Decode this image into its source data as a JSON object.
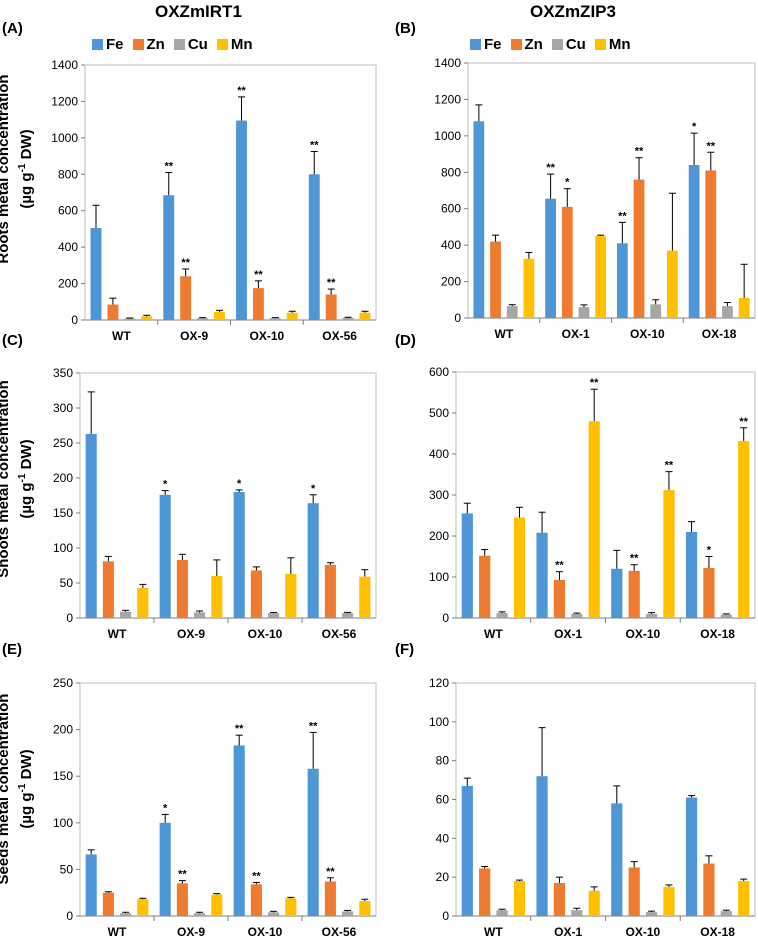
{
  "column_titles": [
    "OXZmIRT1",
    "OXZmZIP3"
  ],
  "panel_letters": [
    "(A)",
    "(B)",
    "(C)",
    "(D)",
    "(E)",
    "(F)"
  ],
  "legend": [
    "Fe",
    "Zn",
    "Cu",
    "Mn"
  ],
  "colors": {
    "Fe": "#4f96d6",
    "Zn": "#ee7b30",
    "Cu": "#a6a6a6",
    "Mn": "#ffc000"
  },
  "row_ylabels": [
    {
      "line1": "Roots metal concentration",
      "unit": "(µg g",
      "sup": "-1",
      "unit_tail": " DW)"
    },
    {
      "line1": "Shoots metal concentration",
      "unit": "(µg g",
      "sup": "-1",
      "unit_tail": " DW)"
    },
    {
      "line1": "Seeds metal concentration",
      "unit": "(µg g",
      "sup": "-1",
      "unit_tail": " DW)"
    }
  ],
  "chart_data": [
    {
      "panel": "(A)",
      "type": "bar",
      "ylim": [
        0,
        1400
      ],
      "ticks": [
        0,
        200,
        400,
        600,
        800,
        1000,
        1200,
        1400
      ],
      "categories": [
        "WT",
        "OX-9",
        "OX-10",
        "OX-56"
      ],
      "series": [
        {
          "name": "Fe",
          "values": [
            505,
            685,
            1095,
            800
          ],
          "errors": [
            125,
            125,
            130,
            125
          ],
          "sig": [
            "",
            "**",
            "**",
            "**"
          ]
        },
        {
          "name": "Zn",
          "values": [
            85,
            240,
            175,
            140
          ],
          "errors": [
            35,
            40,
            40,
            30
          ],
          "sig": [
            "",
            "**",
            "**",
            "**"
          ]
        },
        {
          "name": "Cu",
          "values": [
            8,
            10,
            10,
            12
          ],
          "errors": [
            3,
            3,
            3,
            3
          ],
          "sig": [
            "",
            "",
            "",
            ""
          ]
        },
        {
          "name": "Mn",
          "values": [
            20,
            45,
            40,
            40
          ],
          "errors": [
            6,
            8,
            8,
            8
          ],
          "sig": [
            "",
            "",
            "",
            ""
          ]
        }
      ]
    },
    {
      "panel": "(B)",
      "type": "bar",
      "ylim": [
        0,
        1400
      ],
      "ticks": [
        0,
        200,
        400,
        600,
        800,
        1000,
        1200,
        1400
      ],
      "categories": [
        "WT",
        "OX-1",
        "OX-10",
        "OX-18"
      ],
      "series": [
        {
          "name": "Fe",
          "values": [
            1080,
            655,
            410,
            840
          ],
          "errors": [
            90,
            135,
            115,
            175
          ],
          "sig": [
            "",
            "**",
            "**",
            "*"
          ]
        },
        {
          "name": "Zn",
          "values": [
            420,
            610,
            760,
            810
          ],
          "errors": [
            35,
            100,
            120,
            100
          ],
          "sig": [
            "",
            "*",
            "**",
            "**"
          ]
        },
        {
          "name": "Cu",
          "values": [
            65,
            60,
            75,
            65
          ],
          "errors": [
            8,
            12,
            25,
            20
          ],
          "sig": [
            "",
            "",
            "",
            ""
          ]
        },
        {
          "name": "Mn",
          "values": [
            325,
            450,
            370,
            110
          ],
          "errors": [
            35,
            5,
            315,
            185
          ],
          "sig": [
            "",
            "",
            "",
            ""
          ]
        }
      ]
    },
    {
      "panel": "(C)",
      "type": "bar",
      "ylim": [
        0,
        350
      ],
      "ticks": [
        0,
        50,
        100,
        150,
        200,
        250,
        300,
        350
      ],
      "categories": [
        "WT",
        "OX-9",
        "OX-10",
        "OX-56"
      ],
      "series": [
        {
          "name": "Fe",
          "values": [
            263,
            176,
            180,
            164
          ],
          "errors": [
            60,
            6,
            3,
            12
          ],
          "sig": [
            "",
            "*",
            "*",
            "*"
          ]
        },
        {
          "name": "Zn",
          "values": [
            81,
            83,
            68,
            76
          ],
          "errors": [
            7,
            8,
            5,
            3
          ],
          "sig": [
            "",
            "",
            "",
            ""
          ]
        },
        {
          "name": "Cu",
          "values": [
            9,
            8,
            7,
            7
          ],
          "errors": [
            2,
            2,
            1,
            1
          ],
          "sig": [
            "",
            "",
            "",
            ""
          ]
        },
        {
          "name": "Mn",
          "values": [
            43,
            60,
            63,
            59
          ],
          "errors": [
            5,
            23,
            23,
            10
          ],
          "sig": [
            "",
            "",
            "",
            ""
          ]
        }
      ]
    },
    {
      "panel": "(D)",
      "type": "bar",
      "ylim": [
        0,
        600
      ],
      "ticks": [
        0,
        100,
        200,
        300,
        400,
        500,
        600
      ],
      "categories": [
        "WT",
        "OX-1",
        "OX-10",
        "OX-18"
      ],
      "series": [
        {
          "name": "Fe",
          "values": [
            255,
            208,
            120,
            210
          ],
          "errors": [
            25,
            50,
            45,
            25
          ],
          "sig": [
            "",
            "",
            "",
            ""
          ]
        },
        {
          "name": "Zn",
          "values": [
            152,
            93,
            115,
            122
          ],
          "errors": [
            15,
            20,
            15,
            28
          ],
          "sig": [
            "",
            "**",
            "**",
            "*"
          ]
        },
        {
          "name": "Cu",
          "values": [
            12,
            10,
            10,
            8
          ],
          "errors": [
            3,
            2,
            3,
            2
          ],
          "sig": [
            "",
            "",
            "",
            ""
          ]
        },
        {
          "name": "Mn",
          "values": [
            245,
            480,
            312,
            432
          ],
          "errors": [
            25,
            78,
            45,
            32
          ],
          "sig": [
            "",
            "**",
            "**",
            "**"
          ]
        }
      ]
    },
    {
      "panel": "(E)",
      "type": "bar",
      "ylim": [
        0,
        250
      ],
      "ticks": [
        0,
        50,
        100,
        150,
        200,
        250
      ],
      "categories": [
        "WT",
        "OX-9",
        "OX-10",
        "OX-56"
      ],
      "series": [
        {
          "name": "Fe",
          "values": [
            66,
            100,
            183,
            158
          ],
          "errors": [
            5,
            9,
            11,
            39
          ],
          "sig": [
            "",
            "*",
            "**",
            "**"
          ]
        },
        {
          "name": "Zn",
          "values": [
            25,
            35,
            34,
            37
          ],
          "errors": [
            1,
            3,
            2,
            4
          ],
          "sig": [
            "",
            "**",
            "**",
            "**"
          ]
        },
        {
          "name": "Cu",
          "values": [
            3,
            3,
            4,
            5
          ],
          "errors": [
            1,
            1,
            1,
            1
          ],
          "sig": [
            "",
            "",
            "",
            ""
          ]
        },
        {
          "name": "Mn",
          "values": [
            18,
            23,
            19,
            16
          ],
          "errors": [
            1,
            1,
            1,
            2
          ],
          "sig": [
            "",
            "",
            "",
            ""
          ]
        }
      ]
    },
    {
      "panel": "(F)",
      "type": "bar",
      "ylim": [
        0,
        120
      ],
      "ticks": [
        0,
        20,
        40,
        60,
        80,
        100,
        120
      ],
      "categories": [
        "WT",
        "OX-1",
        "OX-10",
        "OX-18"
      ],
      "series": [
        {
          "name": "Fe",
          "values": [
            67,
            72,
            58,
            61
          ],
          "errors": [
            4,
            25,
            9,
            1
          ],
          "sig": [
            "",
            "",
            "",
            ""
          ]
        },
        {
          "name": "Zn",
          "values": [
            24.5,
            17,
            25,
            27
          ],
          "errors": [
            1,
            3,
            3,
            4
          ],
          "sig": [
            "",
            "",
            "",
            ""
          ]
        },
        {
          "name": "Cu",
          "values": [
            3,
            3,
            2,
            2.5
          ],
          "errors": [
            0.5,
            1,
            0.5,
            0.5
          ],
          "sig": [
            "",
            "",
            "",
            ""
          ]
        },
        {
          "name": "Mn",
          "values": [
            18,
            13,
            15,
            18
          ],
          "errors": [
            0.5,
            2,
            1,
            1
          ],
          "sig": [
            "",
            "",
            "",
            ""
          ]
        }
      ]
    }
  ]
}
